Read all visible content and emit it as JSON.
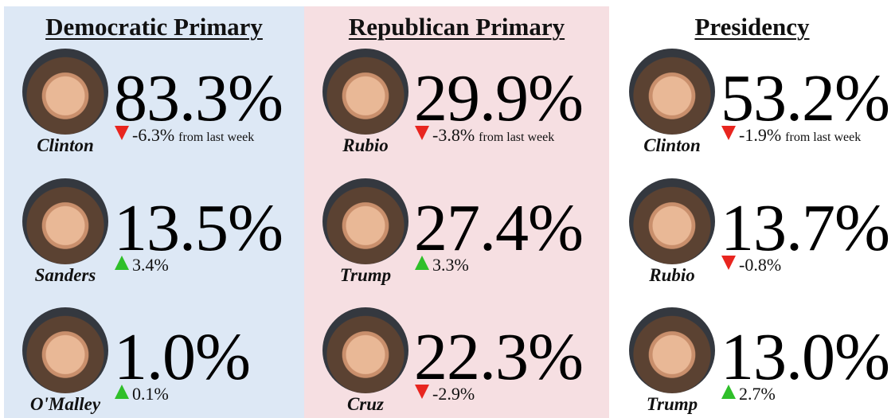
{
  "panels": [
    {
      "title": "Democratic Primary",
      "candidates": [
        {
          "name": "Clinton",
          "percent": "83.3%",
          "change": "-6.3%",
          "note": "from last week"
        },
        {
          "name": "Sanders",
          "percent": "13.5%",
          "change": "3.4%"
        },
        {
          "name": "O'Malley",
          "percent": "1.0%",
          "change": "0.1%"
        }
      ]
    },
    {
      "title": "Republican Primary",
      "candidates": [
        {
          "name": "Rubio",
          "percent": "29.9%",
          "change": "-3.8%",
          "note": "from last week"
        },
        {
          "name": "Trump",
          "percent": "27.4%",
          "change": "3.3%"
        },
        {
          "name": "Cruz",
          "percent": "22.3%",
          "change": "-2.9%"
        }
      ]
    },
    {
      "title": "Presidency",
      "candidates": [
        {
          "name": "Clinton",
          "percent": "53.2%",
          "change": "-1.9%",
          "note": "from last week"
        },
        {
          "name": "Rubio",
          "percent": "13.7%",
          "change": "-0.8%"
        },
        {
          "name": "Trump",
          "percent": "13.0%",
          "change": "2.7%"
        }
      ]
    }
  ]
}
